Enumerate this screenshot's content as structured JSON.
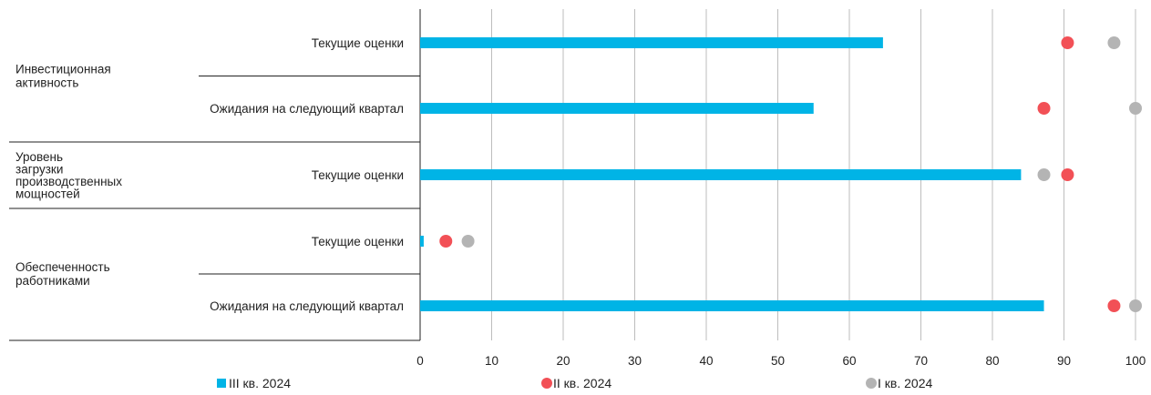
{
  "chart_data": {
    "type": "bar",
    "orientation": "horizontal",
    "xlim": [
      0,
      100
    ],
    "x_ticks": [
      0,
      10,
      20,
      30,
      40,
      50,
      60,
      70,
      80,
      90,
      100
    ],
    "grid": true,
    "legend_position": "bottom",
    "groups": [
      {
        "label": "Инвестиционная активность",
        "rows": [
          0,
          1
        ]
      },
      {
        "label": "Уровень загрузки производственных мощностей",
        "rows": [
          2
        ]
      },
      {
        "label": "Обеспеченность работниками",
        "rows": [
          3,
          4
        ]
      }
    ],
    "categories": [
      "Текущие оценки",
      "Ожидания на следующий квартал",
      "Текущие оценки",
      "Текущие оценки",
      "Ожидания на следующий квартал"
    ],
    "series": [
      {
        "name": "III кв. 2024",
        "kind": "bar",
        "color": "#00b4e6",
        "values": [
          64.7,
          55,
          84,
          0.5,
          87.2
        ]
      },
      {
        "name": "II кв. 2024",
        "kind": "dot",
        "color": "#f25056",
        "values": [
          90.5,
          87.2,
          90.5,
          3.6,
          97
        ]
      },
      {
        "name": "I кв. 2024",
        "kind": "dot",
        "color": "#b4b4b4",
        "values": [
          97,
          100,
          87.2,
          6.7,
          100
        ]
      }
    ]
  }
}
